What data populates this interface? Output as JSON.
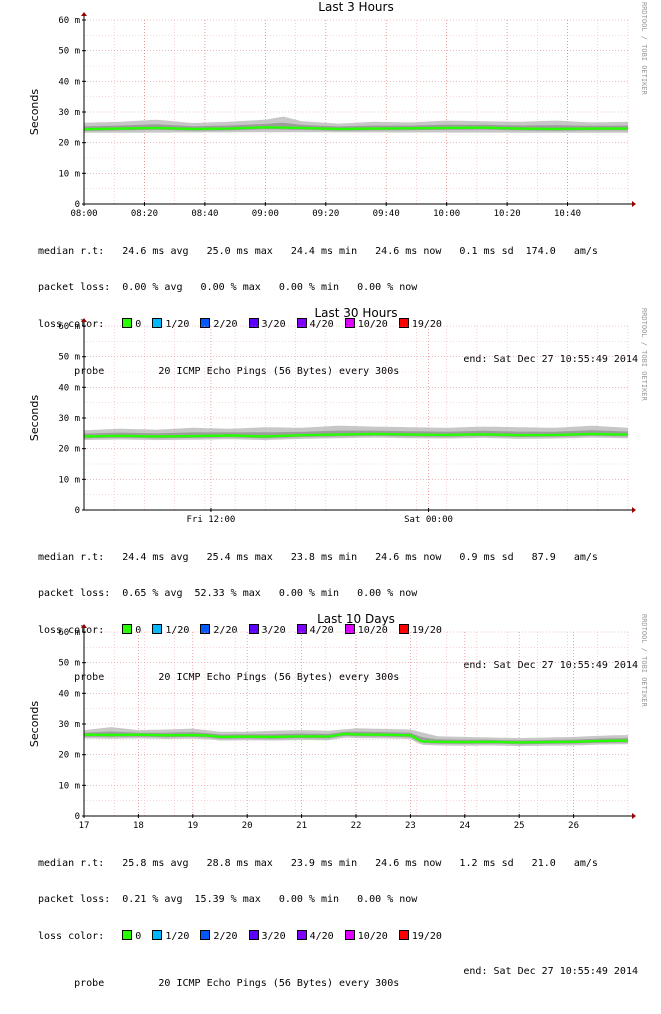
{
  "ylabel": "Seconds",
  "watermark": "RRDTOOL / TOBI OETIKER",
  "loss_colors": [
    {
      "label": "0",
      "color": "#26ff00"
    },
    {
      "label": "1/20",
      "color": "#00b8ff"
    },
    {
      "label": "2/20",
      "color": "#0059ff"
    },
    {
      "label": "3/20",
      "color": "#5e00ff"
    },
    {
      "label": "4/20",
      "color": "#7e00ff"
    },
    {
      "label": "10/20",
      "color": "#dd00ff"
    },
    {
      "label": "19/20",
      "color": "#ff0000"
    }
  ],
  "chart_data": [
    {
      "type": "area",
      "title": "Last 3 Hours",
      "ylabel": "Seconds",
      "y_ticks": [
        "0",
        "10 m",
        "20 m",
        "30 m",
        "40 m",
        "50 m",
        "60 m"
      ],
      "ylim": [
        0,
        60
      ],
      "x_ticks": [
        {
          "label": "08:00",
          "pos": 0
        },
        {
          "label": "08:20",
          "pos": 20
        },
        {
          "label": "08:40",
          "pos": 40
        },
        {
          "label": "09:00",
          "pos": 60
        },
        {
          "label": "09:20",
          "pos": 80
        },
        {
          "label": "09:40",
          "pos": 100
        },
        {
          "label": "10:00",
          "pos": 120
        },
        {
          "label": "10:20",
          "pos": 140
        },
        {
          "label": "10:40",
          "pos": 160
        }
      ],
      "xlim": [
        0,
        180
      ],
      "series": [
        {
          "name": "median",
          "x": [
            0,
            12,
            24,
            36,
            48,
            60,
            72,
            84,
            96,
            108,
            120,
            132,
            144,
            156,
            168,
            180
          ],
          "y": [
            24.4,
            24.6,
            24.8,
            24.5,
            24.6,
            25.0,
            24.8,
            24.5,
            24.6,
            24.7,
            24.8,
            24.9,
            24.6,
            24.5,
            24.6,
            24.6
          ]
        },
        {
          "name": "min",
          "x": [
            0,
            60,
            120,
            180
          ],
          "y": [
            23.2,
            23.4,
            23.3,
            23.2
          ]
        },
        {
          "name": "max",
          "x": [
            0,
            12,
            24,
            36,
            48,
            60,
            66,
            72,
            84,
            96,
            108,
            120,
            132,
            144,
            156,
            168,
            180
          ],
          "y": [
            26.5,
            26.8,
            27.5,
            26.4,
            26.8,
            27.5,
            28.5,
            27.0,
            26.2,
            26.8,
            26.6,
            27.2,
            27.0,
            26.8,
            27.2,
            26.6,
            26.8
          ]
        }
      ],
      "legend": {
        "median_rtt": "median r.t:   24.6 ms avg   25.0 ms max   24.4 ms min   24.6 ms now   0.1 ms sd  174.0   am/s",
        "packet_loss": "packet loss:  0.00 % avg   0.00 % max   0.00 % min   0.00 % now",
        "probe": "probe         20 ICMP Echo Pings (56 Bytes) every 300s",
        "end": "end: Sat Dec 27 10:55:49 2014"
      }
    },
    {
      "type": "area",
      "title": "Last 30 Hours",
      "ylabel": "Seconds",
      "y_ticks": [
        "0",
        "10 m",
        "20 m",
        "30 m",
        "40 m",
        "50 m",
        "60 m"
      ],
      "ylim": [
        0,
        60
      ],
      "x_ticks": [
        {
          "label": "Fri 12:00",
          "pos": 7
        },
        {
          "label": "Sat 00:00",
          "pos": 19
        }
      ],
      "xlim": [
        0,
        30
      ],
      "series": [
        {
          "name": "median",
          "x": [
            0,
            2,
            4,
            6,
            8,
            10,
            12,
            14,
            16,
            18,
            20,
            22,
            24,
            26,
            28,
            30
          ],
          "y": [
            24.0,
            24.2,
            24.0,
            24.1,
            24.3,
            24.0,
            24.4,
            24.6,
            24.8,
            24.6,
            24.5,
            24.7,
            24.4,
            24.5,
            24.8,
            24.6
          ]
        },
        {
          "name": "max",
          "x": [
            0,
            2,
            4,
            6,
            8,
            10,
            12,
            14,
            16,
            18,
            20,
            22,
            24,
            26,
            28,
            30
          ],
          "y": [
            26.0,
            26.5,
            26.2,
            26.8,
            26.5,
            27.0,
            26.8,
            27.5,
            27.2,
            27.0,
            26.8,
            27.2,
            27.0,
            26.8,
            27.5,
            26.8
          ]
        }
      ],
      "legend": {
        "median_rtt": "median r.t:   24.4 ms avg   25.4 ms max   23.8 ms min   24.6 ms now   0.9 ms sd   87.9   am/s",
        "packet_loss": "packet loss:  0.65 % avg  52.33 % max   0.00 % min   0.00 % now",
        "probe": "probe         20 ICMP Echo Pings (56 Bytes) every 300s",
        "end": "end: Sat Dec 27 10:55:49 2014"
      }
    },
    {
      "type": "area",
      "title": "Last 10 Days",
      "ylabel": "Seconds",
      "y_ticks": [
        "0",
        "10 m",
        "20 m",
        "30 m",
        "40 m",
        "50 m",
        "60 m"
      ],
      "ylim": [
        0,
        60
      ],
      "x_ticks": [
        {
          "label": "17",
          "pos": 17
        },
        {
          "label": "18",
          "pos": 18
        },
        {
          "label": "19",
          "pos": 19
        },
        {
          "label": "20",
          "pos": 20
        },
        {
          "label": "21",
          "pos": 21
        },
        {
          "label": "22",
          "pos": 22
        },
        {
          "label": "23",
          "pos": 23
        },
        {
          "label": "24",
          "pos": 24
        },
        {
          "label": "25",
          "pos": 25
        },
        {
          "label": "26",
          "pos": 26
        }
      ],
      "xlim": [
        17,
        27
      ],
      "series": [
        {
          "name": "median",
          "x": [
            17,
            17.5,
            18,
            18.5,
            19,
            19.3,
            19.5,
            20,
            20.5,
            21,
            21.5,
            21.8,
            22,
            22.5,
            23,
            23.2,
            23.5,
            24,
            24.5,
            25,
            25.5,
            26,
            26.5,
            27
          ],
          "y": [
            26.5,
            26.4,
            26.5,
            26.3,
            26.4,
            26.2,
            25.8,
            25.9,
            25.8,
            26.0,
            25.9,
            26.8,
            26.6,
            26.5,
            26.3,
            24.4,
            24.2,
            24.1,
            24.2,
            24.0,
            24.1,
            24.2,
            24.5,
            24.6
          ]
        },
        {
          "name": "max",
          "x": [
            17,
            17.5,
            18,
            18.5,
            19,
            19.5,
            20,
            20.5,
            21,
            21.5,
            22,
            22.5,
            23,
            23.5,
            24,
            24.5,
            25,
            25.5,
            26,
            26.5,
            27
          ],
          "y": [
            28.0,
            29.0,
            28.0,
            28.2,
            28.5,
            27.5,
            27.5,
            27.8,
            28.0,
            27.8,
            28.6,
            28.4,
            28.2,
            26.0,
            25.8,
            25.6,
            25.4,
            25.6,
            25.8,
            26.2,
            26.4
          ]
        }
      ],
      "legend": {
        "median_rtt": "median r.t:   25.8 ms avg   28.8 ms max   23.9 ms min   24.6 ms now   1.2 ms sd   21.0   am/s",
        "packet_loss": "packet loss:  0.21 % avg  15.39 % max   0.00 % min   0.00 % now",
        "probe": "probe         20 ICMP Echo Pings (56 Bytes) every 300s",
        "end": "end: Sat Dec 27 10:55:49 2014"
      }
    }
  ]
}
